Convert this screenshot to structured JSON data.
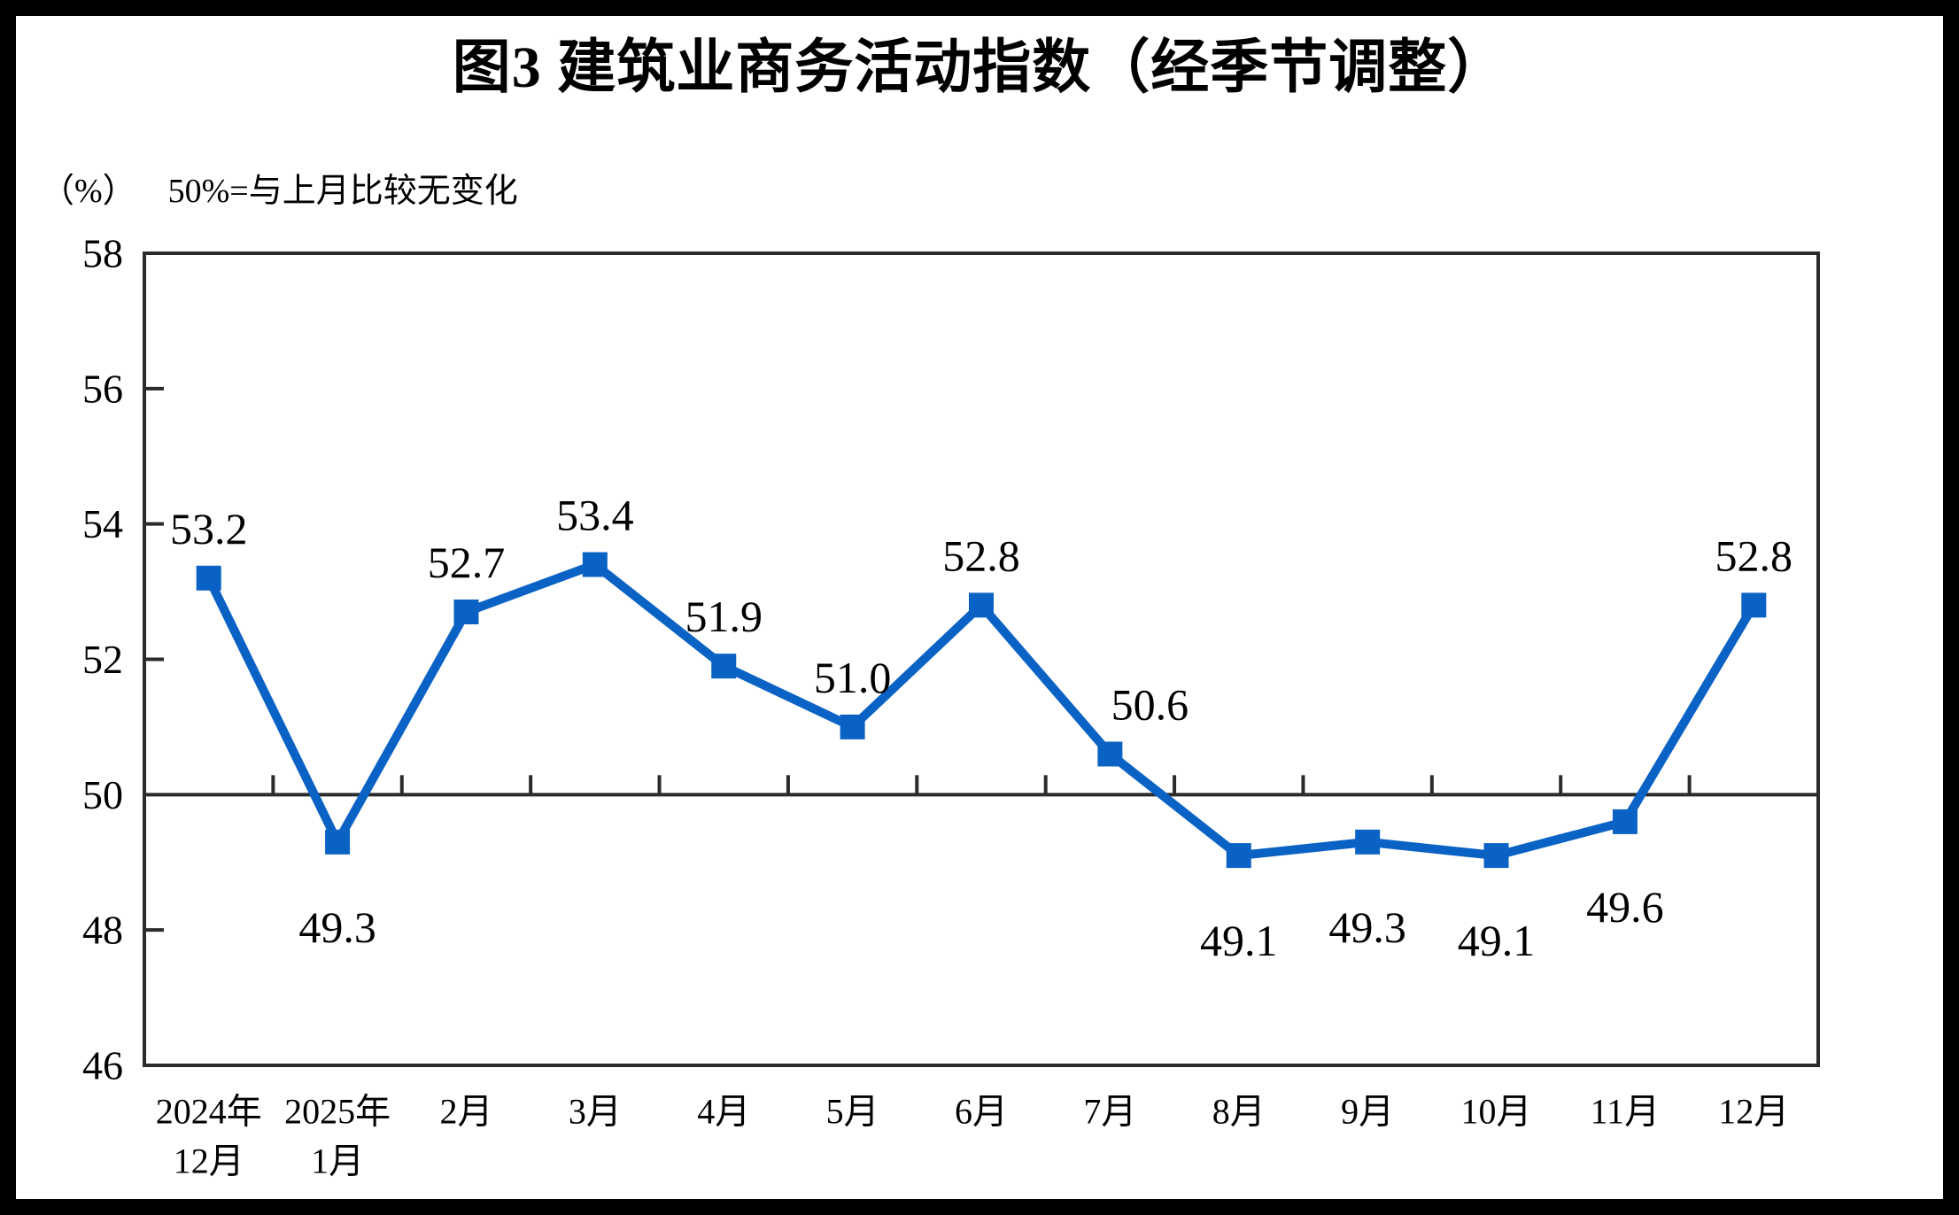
{
  "page": {
    "title": "图3  建筑业商务活动指数（经季节调整）"
  },
  "subtitle": {
    "unit": "（%）",
    "note": "50%=与上月比较无变化"
  },
  "chart_data": {
    "type": "line",
    "title": "图3  建筑业商务活动指数（经季节调整）",
    "ylabel": "（%）",
    "annotation": "50%=与上月比较无变化",
    "categories": [
      "2024年\n12月",
      "2025年\n1月",
      "2月",
      "3月",
      "4月",
      "5月",
      "6月",
      "7月",
      "8月",
      "9月",
      "10月",
      "11月",
      "12月"
    ],
    "values": [
      53.2,
      49.3,
      52.7,
      53.4,
      51.9,
      51.0,
      52.8,
      50.6,
      49.1,
      49.3,
      49.1,
      49.6,
      52.8
    ],
    "point_labels": [
      "53.2",
      "49.3",
      "52.7",
      "53.4",
      "51.9",
      "51.0",
      "52.8",
      "50.6",
      "49.1",
      "49.3",
      "49.1",
      "49.6",
      "52.8"
    ],
    "label_positions": [
      "above",
      "below",
      "above",
      "above",
      "above",
      "above",
      "above",
      "above",
      "below",
      "below",
      "below",
      "below",
      "above"
    ],
    "label_dx": {
      "7": 45
    },
    "ylim": [
      46,
      58
    ],
    "ytick_step": 2,
    "yticks": [
      "46",
      "48",
      "50",
      "52",
      "54",
      "56",
      "58"
    ],
    "baseline_value": 50,
    "grid": "baseline-only",
    "legend": "none",
    "line_color": "#0A62C5",
    "marker": "square",
    "axis_color": "#2B2B2B",
    "text_color": "#000000"
  }
}
